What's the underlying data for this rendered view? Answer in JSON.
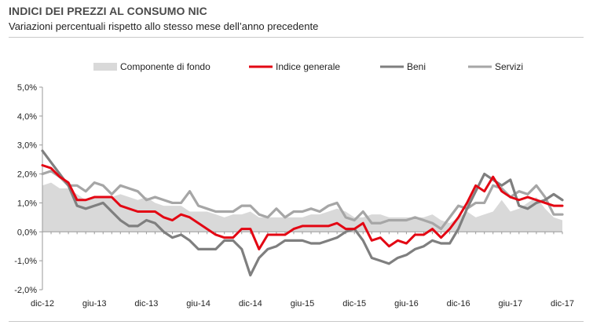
{
  "header": {
    "title": "INDICI DEI PREZZI AL CONSUMO NIC",
    "subtitle": "Variazioni percentuali rispetto allo stesso mese dell’anno precedente"
  },
  "colors": {
    "componente": "#d9d9d9",
    "indice": "#e30613",
    "beni": "#7f7f7f",
    "servizi": "#a6a6a6",
    "axis": "#9a9a9a"
  },
  "chart_data": {
    "type": "line",
    "title": "INDICI DEI PREZZI AL CONSUMO NIC",
    "subtitle": "Variazioni percentuali rispetto allo stesso mese dell’anno precedente",
    "ylim": [
      -2.0,
      5.0
    ],
    "grid": false,
    "legend_position": "top",
    "y_ticks": [
      "5,0%",
      "4,0%",
      "3,0%",
      "2,0%",
      "1,0%",
      "0,0%",
      "-1,0%",
      "-2,0%"
    ],
    "x_ticks": [
      "dic-12",
      "giu-13",
      "dic-13",
      "giu-14",
      "dic-14",
      "giu-15",
      "dic-15",
      "giu-16",
      "dic-16",
      "giu-17",
      "dic-17"
    ],
    "x": [
      "dic-12",
      "gen-13",
      "feb-13",
      "mar-13",
      "apr-13",
      "mag-13",
      "giu-13",
      "lug-13",
      "ago-13",
      "set-13",
      "ott-13",
      "nov-13",
      "dic-13",
      "gen-14",
      "feb-14",
      "mar-14",
      "apr-14",
      "mag-14",
      "giu-14",
      "lug-14",
      "ago-14",
      "set-14",
      "ott-14",
      "nov-14",
      "dic-14",
      "gen-15",
      "feb-15",
      "mar-15",
      "apr-15",
      "mag-15",
      "giu-15",
      "lug-15",
      "ago-15",
      "set-15",
      "ott-15",
      "nov-15",
      "dic-15",
      "gen-16",
      "feb-16",
      "mar-16",
      "apr-16",
      "mag-16",
      "giu-16",
      "lug-16",
      "ago-16",
      "set-16",
      "ott-16",
      "nov-16",
      "dic-16",
      "gen-17",
      "feb-17",
      "mar-17",
      "apr-17",
      "mag-17",
      "giu-17",
      "lug-17",
      "ago-17",
      "set-17",
      "ott-17",
      "nov-17",
      "dic-17"
    ],
    "series": [
      {
        "name": "Componente di fondo",
        "style": "area",
        "values": [
          1.6,
          1.7,
          1.5,
          1.5,
          1.3,
          1.1,
          1.2,
          1.2,
          1.2,
          1.3,
          1.2,
          1.1,
          1.2,
          1.0,
          0.9,
          0.9,
          0.9,
          0.7,
          0.7,
          0.7,
          0.6,
          0.5,
          0.6,
          0.6,
          0.7,
          0.5,
          0.5,
          0.5,
          0.5,
          0.5,
          0.5,
          0.6,
          0.6,
          0.7,
          0.8,
          0.7,
          0.5,
          0.5,
          0.6,
          0.6,
          0.5,
          0.5,
          0.5,
          0.5,
          0.5,
          0.6,
          0.4,
          0.3,
          0.5,
          0.7,
          0.5,
          0.6,
          0.7,
          1.1,
          0.7,
          0.8,
          1.0,
          1.2,
          0.8,
          0.5,
          0.4
        ]
      },
      {
        "name": "Indice generale",
        "style": "line",
        "values": [
          2.3,
          2.2,
          1.9,
          1.7,
          1.1,
          1.1,
          1.2,
          1.2,
          1.2,
          0.9,
          0.8,
          0.7,
          0.7,
          0.7,
          0.5,
          0.4,
          0.6,
          0.5,
          0.3,
          0.1,
          -0.1,
          -0.2,
          -0.2,
          0.1,
          0.1,
          -0.6,
          -0.1,
          -0.1,
          -0.1,
          0.1,
          0.2,
          0.2,
          0.2,
          0.2,
          0.3,
          0.1,
          0.1,
          0.3,
          -0.3,
          -0.2,
          -0.5,
          -0.3,
          -0.4,
          -0.1,
          -0.1,
          0.1,
          -0.2,
          0.1,
          0.5,
          1.0,
          1.6,
          1.4,
          1.9,
          1.4,
          1.2,
          1.1,
          1.2,
          1.1,
          1.0,
          0.9,
          0.9
        ]
      },
      {
        "name": "Beni",
        "style": "line",
        "values": [
          2.8,
          2.4,
          2.0,
          1.6,
          0.9,
          0.8,
          0.9,
          1.0,
          0.7,
          0.4,
          0.2,
          0.2,
          0.4,
          0.3,
          0.0,
          -0.2,
          -0.1,
          -0.3,
          -0.6,
          -0.6,
          -0.6,
          -0.3,
          -0.3,
          -0.6,
          -1.5,
          -0.9,
          -0.6,
          -0.5,
          -0.3,
          -0.3,
          -0.3,
          -0.4,
          -0.4,
          -0.3,
          -0.2,
          0.0,
          0.1,
          -0.3,
          -0.9,
          -1.0,
          -1.1,
          -0.9,
          -0.8,
          -0.6,
          -0.5,
          -0.3,
          -0.4,
          -0.4,
          0.1,
          0.8,
          1.4,
          2.0,
          1.8,
          1.6,
          1.8,
          0.9,
          0.8,
          1.0,
          1.1,
          1.3,
          1.1
        ]
      },
      {
        "name": "Servizi",
        "style": "line",
        "values": [
          2.0,
          2.1,
          1.9,
          1.6,
          1.6,
          1.4,
          1.7,
          1.6,
          1.3,
          1.6,
          1.5,
          1.4,
          1.1,
          1.2,
          1.1,
          1.0,
          1.0,
          1.4,
          0.9,
          0.8,
          0.7,
          0.7,
          0.7,
          0.9,
          0.9,
          0.6,
          0.5,
          0.8,
          0.5,
          0.7,
          0.7,
          0.8,
          0.7,
          0.9,
          1.0,
          0.5,
          0.4,
          0.7,
          0.3,
          0.3,
          0.4,
          0.4,
          0.4,
          0.5,
          0.4,
          0.3,
          0.1,
          0.5,
          0.9,
          0.8,
          1.0,
          1.0,
          1.6,
          1.5,
          1.2,
          1.4,
          1.3,
          1.6,
          1.2,
          0.6,
          0.6
        ]
      }
    ]
  }
}
